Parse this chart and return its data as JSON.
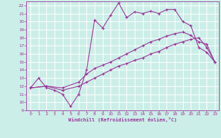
{
  "bg_color": "#cceee8",
  "grid_color": "#ffffff",
  "line_color": "#993399",
  "xlabel": "Windchill (Refroidissement éolien,°C)",
  "xlim": [
    -0.5,
    23.5
  ],
  "ylim": [
    9,
    22.5
  ],
  "xticks": [
    0,
    1,
    2,
    3,
    4,
    5,
    6,
    7,
    8,
    9,
    10,
    11,
    12,
    13,
    14,
    15,
    16,
    17,
    18,
    19,
    20,
    21,
    22,
    23
  ],
  "yticks": [
    9,
    10,
    11,
    12,
    13,
    14,
    15,
    16,
    17,
    18,
    19,
    20,
    21,
    22
  ],
  "line1_x": [
    0,
    1,
    2,
    3,
    4,
    5,
    6,
    7,
    8,
    9,
    10,
    11,
    12,
    13,
    14,
    15,
    16,
    17,
    18,
    19,
    20,
    21,
    22,
    23
  ],
  "line1_y": [
    11.8,
    13.0,
    11.8,
    11.5,
    11.0,
    9.5,
    11.0,
    14.0,
    20.2,
    19.2,
    20.8,
    22.3,
    20.5,
    21.2,
    21.0,
    21.3,
    21.0,
    21.5,
    21.5,
    20.0,
    19.5,
    16.8,
    16.2,
    15.0
  ],
  "line2_x": [
    0,
    2,
    4,
    6,
    7,
    8,
    9,
    10,
    11,
    12,
    13,
    14,
    15,
    16,
    17,
    18,
    19,
    20,
    21,
    22,
    23
  ],
  "line2_y": [
    11.8,
    12.0,
    11.8,
    12.5,
    13.5,
    14.2,
    14.6,
    15.0,
    15.5,
    16.0,
    16.5,
    17.0,
    17.5,
    17.8,
    18.2,
    18.5,
    18.7,
    18.3,
    17.5,
    17.2,
    15.0
  ],
  "line3_x": [
    0,
    2,
    4,
    6,
    7,
    8,
    9,
    10,
    11,
    12,
    13,
    14,
    15,
    16,
    17,
    18,
    19,
    20,
    21,
    22,
    23
  ],
  "line3_y": [
    11.8,
    12.0,
    11.5,
    12.0,
    12.5,
    13.0,
    13.5,
    14.0,
    14.5,
    14.8,
    15.2,
    15.5,
    16.0,
    16.3,
    16.8,
    17.2,
    17.5,
    17.8,
    18.0,
    16.8,
    15.0
  ]
}
